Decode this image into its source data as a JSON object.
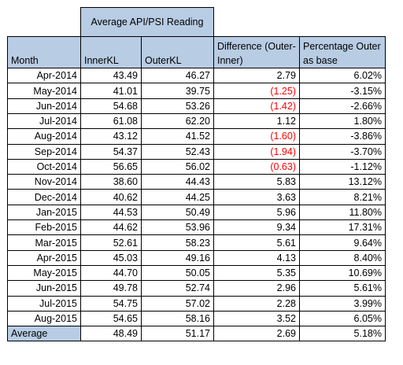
{
  "group_header": "Average API/PSI Reading",
  "columns": {
    "month": "Month",
    "inner": "InnerKL",
    "outer": "OuterKL",
    "diff": "Difference (Outer-Inner)",
    "pct": "Percentage Outer as base"
  },
  "rows": [
    {
      "month": "Apr-2014",
      "inner": "43.49",
      "outer": "46.27",
      "diff": "2.79",
      "pct": "6.02%"
    },
    {
      "month": "May-2014",
      "inner": "41.01",
      "outer": "39.75",
      "diff": "(1.25)",
      "pct": "-3.15%"
    },
    {
      "month": "Jun-2014",
      "inner": "54.68",
      "outer": "53.26",
      "diff": "(1.42)",
      "pct": "-2.66%"
    },
    {
      "month": "Jul-2014",
      "inner": "61.08",
      "outer": "62.20",
      "diff": "1.12",
      "pct": "1.80%"
    },
    {
      "month": "Aug-2014",
      "inner": "43.12",
      "outer": "41.52",
      "diff": "(1.60)",
      "pct": "-3.86%"
    },
    {
      "month": "Sep-2014",
      "inner": "54.37",
      "outer": "52.43",
      "diff": "(1.94)",
      "pct": "-3.70%"
    },
    {
      "month": "Oct-2014",
      "inner": "56.65",
      "outer": "56.02",
      "diff": "(0.63)",
      "pct": "-1.12%"
    },
    {
      "month": "Nov-2014",
      "inner": "38.60",
      "outer": "44.43",
      "diff": "5.83",
      "pct": "13.12%"
    },
    {
      "month": "Dec-2014",
      "inner": "40.62",
      "outer": "44.25",
      "diff": "3.63",
      "pct": "8.21%"
    },
    {
      "month": "Jan-2015",
      "inner": "44.53",
      "outer": "50.49",
      "diff": "5.96",
      "pct": "11.80%"
    },
    {
      "month": "Feb-2015",
      "inner": "44.62",
      "outer": "53.96",
      "diff": "9.34",
      "pct": "17.31%"
    },
    {
      "month": "Mar-2015",
      "inner": "52.61",
      "outer": "58.23",
      "diff": "5.61",
      "pct": "9.64%"
    },
    {
      "month": "Apr-2015",
      "inner": "45.03",
      "outer": "49.16",
      "diff": "4.13",
      "pct": "8.40%"
    },
    {
      "month": "May-2015",
      "inner": "44.70",
      "outer": "50.05",
      "diff": "5.35",
      "pct": "10.69%"
    },
    {
      "month": "Jun-2015",
      "inner": "49.78",
      "outer": "52.74",
      "diff": "2.96",
      "pct": "5.61%"
    },
    {
      "month": "Jul-2015",
      "inner": "54.75",
      "outer": "57.02",
      "diff": "2.28",
      "pct": "3.99%"
    },
    {
      "month": "Aug-2015",
      "inner": "54.65",
      "outer": "58.16",
      "diff": "3.52",
      "pct": "6.05%"
    }
  ],
  "average": {
    "label": "Average",
    "inner": "48.49",
    "outer": "51.17",
    "diff": "2.69",
    "pct": "5.18%"
  },
  "colors": {
    "header_fill": "#b8cce4",
    "negative_text": "#ff0000",
    "border": "#000000"
  }
}
